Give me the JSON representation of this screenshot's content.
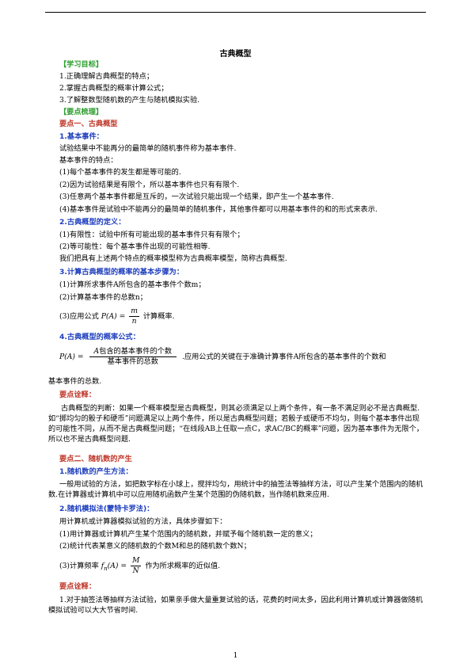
{
  "title": "古典概型",
  "sec_goals": "【学习目标】",
  "goals": [
    "1.正确理解古典概型的特点；",
    "2.掌握古典概型的概率计算公式；",
    "3.了解整数型随机数的产生与随机模拟实验."
  ],
  "sec_points": "【要点梳理】",
  "point1": "要点一、古典概型",
  "s1_head": "1.基本事件：",
  "s1_lines": [
    "试验结果中不能再分的最简单的随机事件称为基本事件.",
    "基本事件的特点：",
    "(1)每个基本事件的发生都是等可能的.",
    "(2)因为试验结果是有限个，所以基本事件也只有有限个.",
    "(3)任意两个基本事件都是互斥的，一次试验只能出现一个结果，即产生一个基本事件.",
    "(4)基本事件是试验中不能再分的最简单的随机事件，其他事件都可以用基本事件的和的形式来表示."
  ],
  "s2_head": "2.古典概型的定义：",
  "s2_lines": [
    "(1)有限性：试验中所有可能出现的基本事件只有有限个；",
    "(2)等可能性：每个基本事件出现的可能性相等.",
    "我们把具有上述两个特点的概率模型称为古典概率模型，简称古典概型."
  ],
  "s3_head": "3.计算古典概型的概率的基本步骤为：",
  "s3_lines": [
    "(1)计算所求事件A所包含的基本事件个数m；",
    "(2)计算基本事件的总数n；"
  ],
  "s3_line3_pre": "(3)应用公式",
  "s3_formula_lhs": "P(A) =",
  "s3_formula_num": "m",
  "s3_formula_den": "n",
  "s3_line3_post": "计算概率.",
  "s4_head": "4.古典概型的概率公式：",
  "s4_formula_lhs": "P(A) =",
  "s4_formula_num_it": "A",
  "s4_formula_num": "包含的基本事件的个数",
  "s4_formula_den": "基本事件的总数",
  "s4_tail": ".应用公式的关键在于准确计算事件A所包含的基本事件的个数和",
  "s4_cont": "基本事件的总数.",
  "note1_head": "要点诠释：",
  "note1_text": "古典概型的判断：如果一个概率模型是古典概型，则其必须满足以上两个条件，有一条不满足则必不是古典概型.如“掷均匀的骰子和硬币”问题满足以上两个条件，所以是古典概型问题；若骰子或硬币不均匀，则每个基本事件出现的可能性不同，从而不是古典概型问题；“在线段AB上任取一点C，求AC/BC的概率”问题，因为基本事件为无限个，所以也不是古典概型问题.",
  "point2": "要点二、随机数的产生",
  "r1_head": "1.随机数的产生方法：",
  "r1_text": "一般用试验的方法，如把数字标在小球上，搅拌均匀，用统计中的抽签法等抽样方法，可以产生某个范围内的随机数.在计算器或计算机中可以应用随机函数产生某个范围的伪随机数，当作随机数来应用.",
  "r2_head": "2.随机模拟法(蒙特卡罗法)：",
  "r2_lines": [
    "用计算机或计算器模拟试验的方法，具体步骤如下：",
    "(1)用计算器或计算机产生某个范围内的随机数，并赋予每个随机数一定的意义；",
    "(2)统计代表某意义的随机数的个数M和总的随机数个数N；"
  ],
  "r2_line4_pre": "(3)计算频率",
  "r2_formula_lhs": "f",
  "r2_formula_sub": "n",
  "r2_formula_mid": "(A) =",
  "r2_formula_num": "M",
  "r2_formula_den": "N",
  "r2_line4_post": "作为所求概率的近似值.",
  "note2_head": "要点诠释：",
  "note2_text": "1.对于抽签法等抽样方法试验，如果亲手做大量重复试验的话，花费的时间太多，因此利用计算机或计算器做随机模拟试验可以大大节省时间.",
  "page_number": "1"
}
